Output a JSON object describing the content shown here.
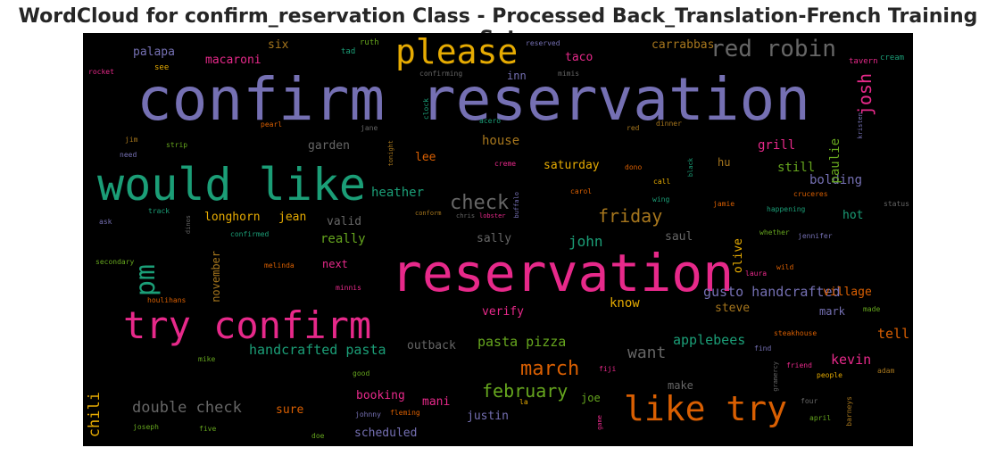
{
  "chart_data": {
    "type": "wordcloud",
    "title": "WordCloud for confirm_reservation Class - Processed Back_Translation-French Training Set",
    "background": "#000000",
    "colormap": [
      "#7570b3",
      "#1b9e77",
      "#e7298a",
      "#d95f02",
      "#e6ab02",
      "#66a61e",
      "#a6761d",
      "#666666"
    ],
    "words": [
      {
        "text": "confirm reservation",
        "color": "#7570b3"
      },
      {
        "text": "reservation",
        "color": "#e7298a"
      },
      {
        "text": "would like",
        "color": "#1b9e77"
      },
      {
        "text": "try confirm",
        "color": "#e7298a"
      },
      {
        "text": "please",
        "color": "#e6ab02"
      },
      {
        "text": "like try",
        "color": "#d95f02"
      },
      {
        "text": "red robin",
        "color": "#666666"
      },
      {
        "text": "pm",
        "color": "#1b9e77"
      },
      {
        "text": "check",
        "color": "#666666"
      },
      {
        "text": "march",
        "color": "#d95f02"
      },
      {
        "text": "friday",
        "color": "#a6761d"
      },
      {
        "text": "josh",
        "color": "#e7298a"
      },
      {
        "text": "february",
        "color": "#66a61e"
      },
      {
        "text": "double check",
        "color": "#666666"
      },
      {
        "text": "want",
        "color": "#666666"
      },
      {
        "text": "gusto handcrafted",
        "color": "#7570b3"
      },
      {
        "text": "handcrafted pasta",
        "color": "#1b9e77"
      },
      {
        "text": "pasta pizza",
        "color": "#66a61e"
      },
      {
        "text": "applebees",
        "color": "#1b9e77"
      },
      {
        "text": "john",
        "color": "#1b9e77"
      },
      {
        "text": "chili",
        "color": "#e6ab02"
      },
      {
        "text": "heather",
        "color": "#1b9e77"
      },
      {
        "text": "house",
        "color": "#a6761d"
      },
      {
        "text": "bolding",
        "color": "#7570b3"
      },
      {
        "text": "paulie",
        "color": "#66a61e"
      },
      {
        "text": "kevin",
        "color": "#e7298a"
      },
      {
        "text": "village",
        "color": "#d95f02"
      },
      {
        "text": "grill",
        "color": "#e7298a"
      },
      {
        "text": "still",
        "color": "#66a61e"
      },
      {
        "text": "know",
        "color": "#e6ab02"
      },
      {
        "text": "tell",
        "color": "#d95f02"
      },
      {
        "text": "really",
        "color": "#66a61e"
      },
      {
        "text": "saturday",
        "color": "#e6ab02"
      },
      {
        "text": "longhorn",
        "color": "#e6ab02"
      },
      {
        "text": "jean",
        "color": "#e6ab02"
      },
      {
        "text": "verify",
        "color": "#e7298a"
      },
      {
        "text": "garden",
        "color": "#666666"
      },
      {
        "text": "valid",
        "color": "#666666"
      },
      {
        "text": "sally",
        "color": "#666666"
      },
      {
        "text": "saul",
        "color": "#666666"
      },
      {
        "text": "hot",
        "color": "#1b9e77"
      },
      {
        "text": "mark",
        "color": "#7570b3"
      },
      {
        "text": "steve",
        "color": "#a6761d"
      },
      {
        "text": "booking",
        "color": "#e7298a"
      },
      {
        "text": "scheduled",
        "color": "#7570b3"
      },
      {
        "text": "justin",
        "color": "#7570b3"
      },
      {
        "text": "make",
        "color": "#666666"
      },
      {
        "text": "joe",
        "color": "#66a61e"
      },
      {
        "text": "sure",
        "color": "#d95f02"
      },
      {
        "text": "mani",
        "color": "#e7298a"
      },
      {
        "text": "outback",
        "color": "#666666"
      },
      {
        "text": "november",
        "color": "#a6761d"
      },
      {
        "text": "olive",
        "color": "#e6ab02"
      },
      {
        "text": "next",
        "color": "#e7298a"
      },
      {
        "text": "lee",
        "color": "#d95f02"
      },
      {
        "text": "hu",
        "color": "#a6761d"
      },
      {
        "text": "inn",
        "color": "#7570b3"
      },
      {
        "text": "taco",
        "color": "#e7298a"
      },
      {
        "text": "carrabbas",
        "color": "#a6761d"
      },
      {
        "text": "macaroni",
        "color": "#e7298a"
      },
      {
        "text": "palapa",
        "color": "#7570b3"
      },
      {
        "text": "six",
        "color": "#a6761d"
      },
      {
        "text": "ruth",
        "color": "#66a61e"
      },
      {
        "text": "tad",
        "color": "#1b9e77"
      },
      {
        "text": "reserved",
        "color": "#7570b3"
      },
      {
        "text": "confirming",
        "color": "#666666"
      },
      {
        "text": "mimis",
        "color": "#666666"
      },
      {
        "text": "tavern",
        "color": "#e7298a"
      },
      {
        "text": "cream",
        "color": "#1b9e77"
      },
      {
        "text": "rocket",
        "color": "#e7298a"
      },
      {
        "text": "see",
        "color": "#e6ab02"
      },
      {
        "text": "clock",
        "color": "#1b9e77"
      },
      {
        "text": "acero",
        "color": "#1b9e77"
      },
      {
        "text": "dinner",
        "color": "#a6761d"
      },
      {
        "text": "kristen",
        "color": "#7570b3"
      },
      {
        "text": "pearl",
        "color": "#d95f02"
      },
      {
        "text": "jane",
        "color": "#666666"
      },
      {
        "text": "red",
        "color": "#a6761d"
      },
      {
        "text": "jim",
        "color": "#a6761d"
      },
      {
        "text": "strip",
        "color": "#66a61e"
      },
      {
        "text": "need",
        "color": "#7570b3"
      },
      {
        "text": "tonight",
        "color": "#a6761d"
      },
      {
        "text": "creme",
        "color": "#e7298a"
      },
      {
        "text": "dono",
        "color": "#d95f02"
      },
      {
        "text": "black",
        "color": "#1b9e77"
      },
      {
        "text": "call",
        "color": "#e6ab02"
      },
      {
        "text": "carol",
        "color": "#d95f02"
      },
      {
        "text": "wing",
        "color": "#1b9e77"
      },
      {
        "text": "cruceres",
        "color": "#d95f02"
      },
      {
        "text": "jamie",
        "color": "#d95f02"
      },
      {
        "text": "happening",
        "color": "#1b9e77"
      },
      {
        "text": "status",
        "color": "#666666"
      },
      {
        "text": "track",
        "color": "#1b9e77"
      },
      {
        "text": "ask",
        "color": "#7570b3"
      },
      {
        "text": "dinos",
        "color": "#666666"
      },
      {
        "text": "conform",
        "color": "#a6761d"
      },
      {
        "text": "chris",
        "color": "#666666"
      },
      {
        "text": "lobster",
        "color": "#e7298a"
      },
      {
        "text": "buffalo",
        "color": "#7570b3"
      },
      {
        "text": "confirmed",
        "color": "#1b9e77"
      },
      {
        "text": "whether",
        "color": "#66a61e"
      },
      {
        "text": "jennifer",
        "color": "#7570b3"
      },
      {
        "text": "secondary",
        "color": "#66a61e"
      },
      {
        "text": "melinda",
        "color": "#d95f02"
      },
      {
        "text": "laura",
        "color": "#e7298a"
      },
      {
        "text": "wild",
        "color": "#d95f02"
      },
      {
        "text": "minnis",
        "color": "#e7298a"
      },
      {
        "text": "houlihans",
        "color": "#d95f02"
      },
      {
        "text": "made",
        "color": "#66a61e"
      },
      {
        "text": "steakhouse",
        "color": "#d95f02"
      },
      {
        "text": "find",
        "color": "#7570b3"
      },
      {
        "text": "mike",
        "color": "#66a61e"
      },
      {
        "text": "good",
        "color": "#66a61e"
      },
      {
        "text": "fiji",
        "color": "#e7298a"
      },
      {
        "text": "gramercy",
        "color": "#666666"
      },
      {
        "text": "friend",
        "color": "#e7298a"
      },
      {
        "text": "people",
        "color": "#e6ab02"
      },
      {
        "text": "adam",
        "color": "#a6761d"
      },
      {
        "text": "la",
        "color": "#e6ab02"
      },
      {
        "text": "four",
        "color": "#666666"
      },
      {
        "text": "johnny",
        "color": "#7570b3"
      },
      {
        "text": "fleming",
        "color": "#d95f02"
      },
      {
        "text": "game",
        "color": "#e7298a"
      },
      {
        "text": "april",
        "color": "#66a61e"
      },
      {
        "text": "barneys",
        "color": "#a6761d"
      },
      {
        "text": "joseph",
        "color": "#66a61e"
      },
      {
        "text": "five",
        "color": "#66a61e"
      },
      {
        "text": "doe",
        "color": "#66a61e"
      }
    ]
  }
}
